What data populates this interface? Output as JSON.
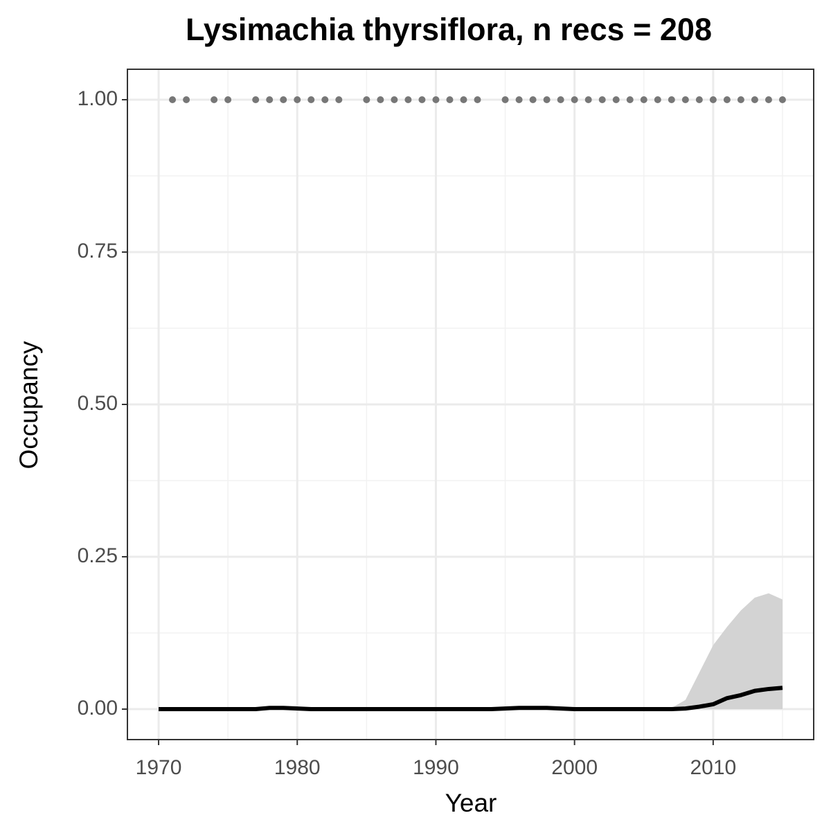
{
  "chart_data": {
    "type": "line",
    "title": "Lysimachia thyrsiflora, n recs = 208",
    "x_label": "Year",
    "y_label": "Occupancy",
    "x": [
      1970,
      1971,
      1972,
      1973,
      1974,
      1975,
      1976,
      1977,
      1978,
      1979,
      1980,
      1981,
      1982,
      1983,
      1984,
      1985,
      1986,
      1987,
      1988,
      1989,
      1990,
      1991,
      1992,
      1993,
      1994,
      1995,
      1996,
      1997,
      1998,
      1999,
      2000,
      2001,
      2002,
      2003,
      2004,
      2005,
      2006,
      2007,
      2008,
      2009,
      2010,
      2011,
      2012,
      2013,
      2014,
      2015
    ],
    "values": [
      0,
      0,
      0,
      0,
      0,
      0,
      0,
      0,
      0.002,
      0.002,
      0.001,
      0,
      0,
      0,
      0,
      0,
      0,
      0,
      0,
      0,
      0,
      0,
      0,
      0,
      0,
      0.001,
      0.002,
      0.002,
      0.002,
      0.001,
      0,
      0,
      0,
      0,
      0,
      0,
      0,
      0,
      0.001,
      0.004,
      0.008,
      0.018,
      0.023,
      0.03,
      0.033,
      0.035
    ],
    "ci_lower": [
      0,
      0,
      0,
      0,
      0,
      0,
      0,
      0,
      0,
      0,
      0,
      0,
      0,
      0,
      0,
      0,
      0,
      0,
      0,
      0,
      0,
      0,
      0,
      0,
      0,
      0,
      0,
      0,
      0,
      0,
      0,
      0,
      0,
      0,
      0,
      0,
      0,
      0,
      0,
      0,
      0,
      0,
      0,
      0,
      0,
      0
    ],
    "ci_upper": [
      0,
      0,
      0,
      0,
      0,
      0,
      0,
      0,
      0.003,
      0.003,
      0.002,
      0,
      0,
      0,
      0,
      0,
      0,
      0,
      0,
      0,
      0,
      0,
      0,
      0,
      0,
      0.002,
      0.003,
      0.003,
      0.003,
      0.002,
      0,
      0,
      0,
      0,
      0,
      0,
      0,
      0.002,
      0.015,
      0.06,
      0.105,
      0.135,
      0.162,
      0.183,
      0.19,
      0.18
    ],
    "points_x": [
      1971,
      1972,
      1974,
      1975,
      1977,
      1978,
      1979,
      1980,
      1981,
      1982,
      1983,
      1985,
      1986,
      1987,
      1988,
      1989,
      1990,
      1991,
      1992,
      1993,
      1995,
      1996,
      1997,
      1998,
      1999,
      2000,
      2001,
      2002,
      2003,
      2004,
      2005,
      2006,
      2007,
      2008,
      2009,
      2010,
      2011,
      2012,
      2013,
      2014,
      2015
    ],
    "points_y": [
      1,
      1,
      1,
      1,
      1,
      1,
      1,
      1,
      1,
      1,
      1,
      1,
      1,
      1,
      1,
      1,
      1,
      1,
      1,
      1,
      1,
      1,
      1,
      1,
      1,
      1,
      1,
      1,
      1,
      1,
      1,
      1,
      1,
      1,
      1,
      1,
      1,
      1,
      1,
      1,
      1
    ],
    "line_color": "#000000",
    "band_color": "#d3d3d3",
    "point_color": "#777777",
    "xlim": [
      1967.75,
      2017.25
    ],
    "ylim": [
      -0.05,
      1.05
    ],
    "xticks": [
      1970,
      1980,
      1990,
      2000,
      2010
    ],
    "yticks": [
      {
        "value": 0,
        "label": "0.00"
      },
      0.25,
      {
        "value": 0.5,
        "label": "0.50"
      },
      0.75,
      {
        "value": 1,
        "label": "1.00"
      }
    ],
    "x_minor_grid": [
      1975,
      1985,
      1995,
      2005,
      2015
    ],
    "y_minor_grid": [
      0.125,
      0.375,
      0.625,
      0.875
    ],
    "grid": true
  }
}
